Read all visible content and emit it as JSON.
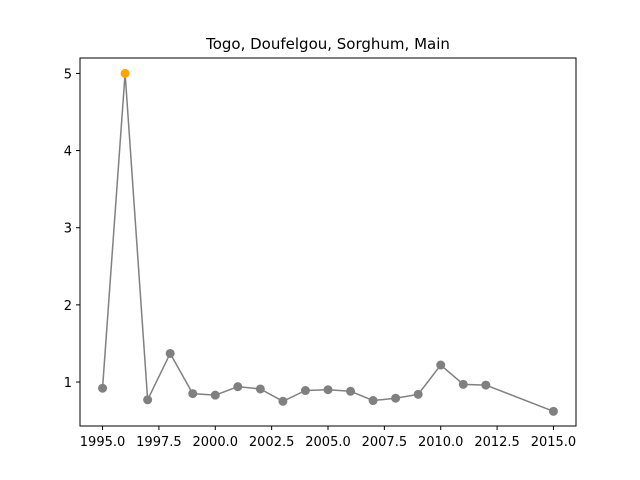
{
  "chart_data": {
    "type": "line",
    "title": "Togo, Doufelgou, Sorghum, Main",
    "xlabel": "",
    "ylabel": "",
    "xlim": [
      1994.0,
      2016.0
    ],
    "ylim": [
      0.43,
      5.2
    ],
    "xticks": [
      1995.0,
      1997.5,
      2000.0,
      2002.5,
      2005.0,
      2007.5,
      2010.0,
      2012.5,
      2015.0
    ],
    "xtick_labels": [
      "1995.0",
      "1997.5",
      "2000.0",
      "2002.5",
      "2005.0",
      "2007.5",
      "2010.0",
      "2012.5",
      "2015.0"
    ],
    "yticks": [
      1,
      2,
      3,
      4,
      5
    ],
    "ytick_labels": [
      "1",
      "2",
      "3",
      "4",
      "5"
    ],
    "grid": false,
    "line_color": "#808080",
    "highlight_color": "#ffa500",
    "series": [
      {
        "x": [
          1995,
          1996,
          1997,
          1998,
          1999,
          2000,
          2001,
          2002,
          2003,
          2004,
          2005,
          2006,
          2007,
          2008,
          2009,
          2010,
          2011,
          2012,
          2015
        ],
        "y": [
          0.92,
          5.0,
          0.77,
          1.37,
          0.85,
          0.83,
          0.94,
          0.91,
          0.75,
          0.89,
          0.9,
          0.88,
          0.76,
          0.79,
          0.84,
          1.22,
          0.97,
          0.96,
          0.62
        ],
        "highlight_index": 1
      }
    ]
  }
}
